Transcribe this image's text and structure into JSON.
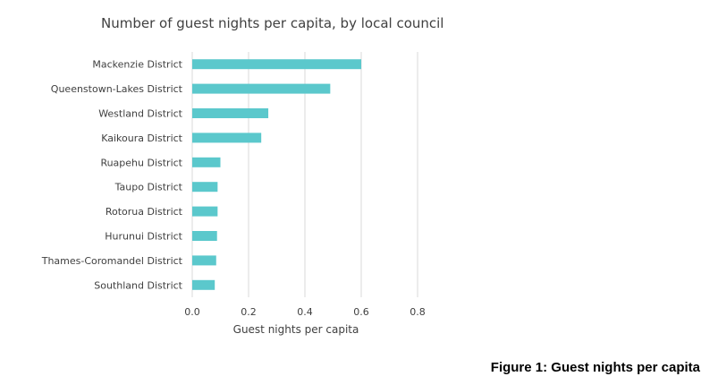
{
  "chart_data": {
    "type": "bar",
    "orientation": "horizontal",
    "title": "Number of guest nights per capita, by local council",
    "xlabel": "Guest nights per capita",
    "ylabel": "",
    "xlim": [
      0,
      0.8
    ],
    "xticks": [
      0.0,
      0.2,
      0.4,
      0.6,
      0.8
    ],
    "xtick_labels": [
      "0.0",
      "0.2",
      "0.4",
      "0.6",
      "0.8"
    ],
    "grid": true,
    "bar_color": "#5BC8CC",
    "categories": [
      "Mackenzie District",
      "Queenstown-Lakes District",
      "Westland District",
      "Kaikoura District",
      "Ruapehu District",
      "Taupo District",
      "Rotorua District",
      "Hurunui District",
      "Thames-Coromandel District",
      "Southland District"
    ],
    "values": [
      0.6,
      0.49,
      0.27,
      0.245,
      0.1,
      0.09,
      0.09,
      0.088,
      0.085,
      0.08
    ]
  },
  "caption": "Figure 1: Guest nights per capita"
}
